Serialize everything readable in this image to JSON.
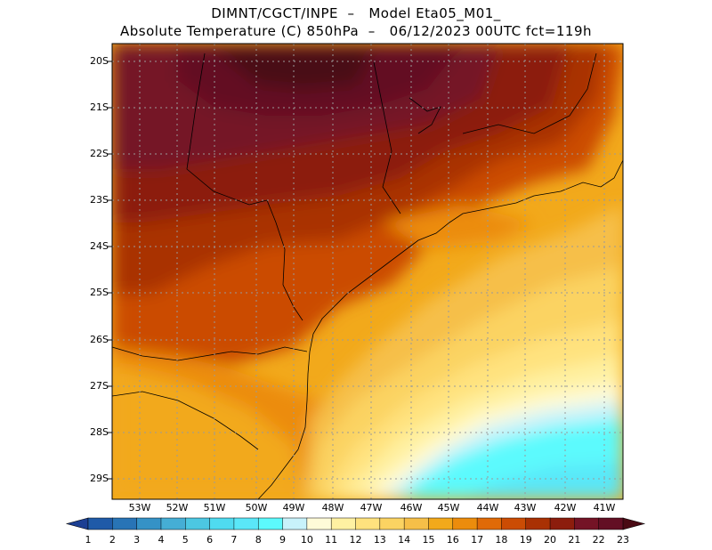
{
  "header": {
    "line1": "DIMNT/CGCT/INPE  –   Model Eta05_M01_",
    "line2": "Absolute Temperature (C) 850hPa  –   06/12/2023 00UTC fct=119h"
  },
  "map": {
    "lat_labels": [
      "20S",
      "21S",
      "22S",
      "23S",
      "24S",
      "25S",
      "26S",
      "27S",
      "28S",
      "29S"
    ],
    "lon_labels": [
      "53W",
      "52W",
      "51W",
      "50W",
      "49W",
      "48W",
      "47W",
      "46W",
      "45W",
      "44W",
      "43W",
      "42W",
      "41W"
    ],
    "field": "Absolute Temperature (C) 850hPa"
  },
  "colorbar": {
    "labels": [
      "1",
      "2",
      "3",
      "4",
      "5",
      "6",
      "7",
      "8",
      "9",
      "10",
      "11",
      "12",
      "13",
      "14",
      "15",
      "16",
      "17",
      "18",
      "19",
      "20",
      "21",
      "22",
      "23"
    ],
    "colors": [
      "#1c3f93",
      "#1f5aa8",
      "#2874b6",
      "#3592c6",
      "#45aed5",
      "#4cc7e2",
      "#4fdbf0",
      "#5ae7f8",
      "#5cfafd",
      "#c8f2fb",
      "#fffbd8",
      "#fff1a2",
      "#ffe27e",
      "#fbd362",
      "#f6bf48",
      "#f2a91b",
      "#ec8c0c",
      "#e06a07",
      "#cb4c04",
      "#a93103",
      "#8c1d0d",
      "#741326",
      "#630f24",
      "#4a0a14"
    ]
  }
}
